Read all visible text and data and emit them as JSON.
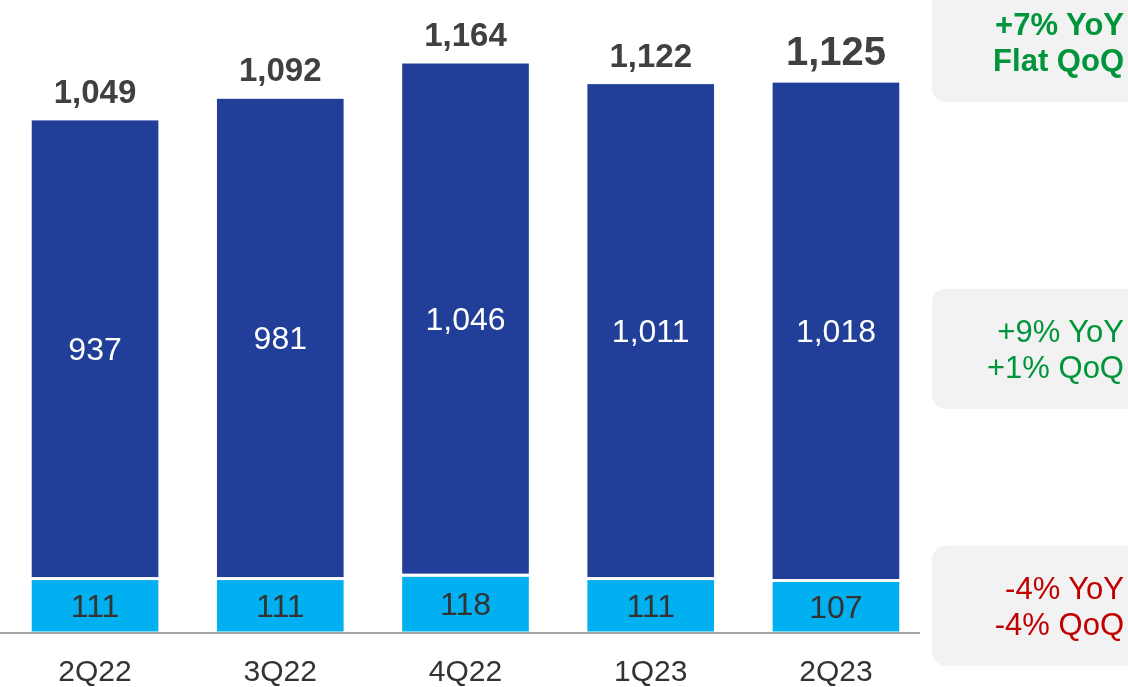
{
  "chart_data": {
    "type": "bar",
    "stacked": true,
    "categories": [
      "2Q22",
      "3Q22",
      "4Q22",
      "1Q23",
      "2Q23"
    ],
    "series": [
      {
        "color": "#00b0f0",
        "values": [
          111,
          111,
          118,
          111,
          107
        ],
        "value_labels": [
          "111",
          "111",
          "118",
          "111",
          "107"
        ]
      },
      {
        "color": "#213f99",
        "values": [
          937,
          981,
          1046,
          1011,
          1018
        ],
        "value_labels": [
          "937",
          "981",
          "1,046",
          "1,011",
          "1,018"
        ]
      }
    ],
    "totals": [
      "1,049",
      "1,092",
      "1,164",
      "1,122",
      "1,125"
    ],
    "annotations": [
      "+7% YoY\nFlat QoQ",
      "+9% YoY\n+1% QoQ",
      "-4% YoY\n-4% QoQ"
    ]
  }
}
